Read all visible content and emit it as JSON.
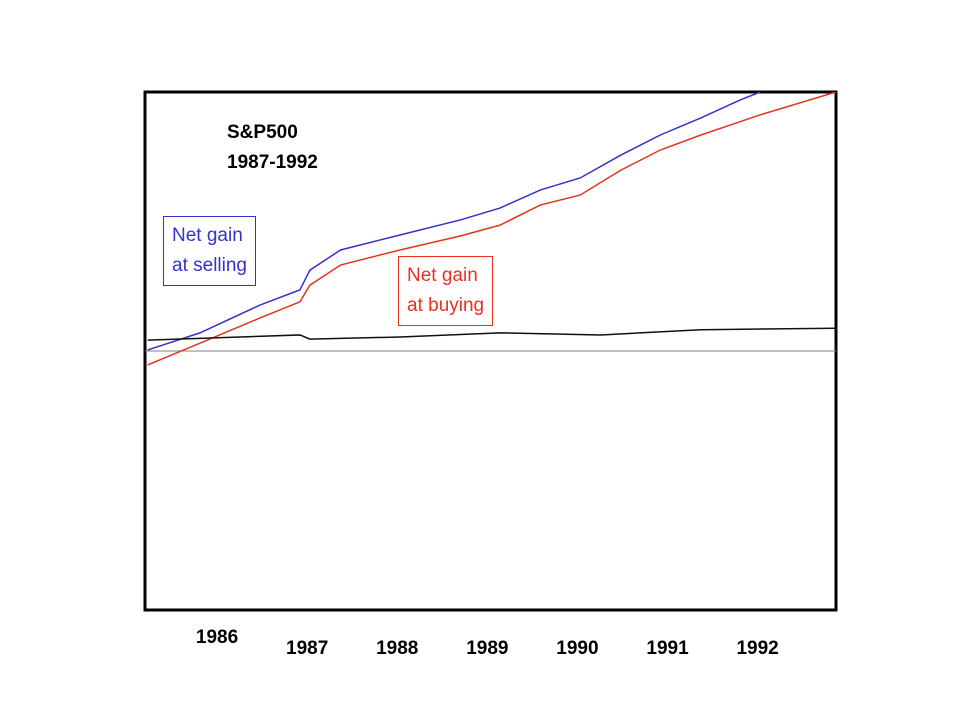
{
  "chart_data": {
    "type": "line",
    "title": "S&P500\n1987-1992",
    "xlim": [
      1985.2,
      1992.87
    ],
    "xticks": [
      1986,
      1987,
      1988,
      1989,
      1990,
      1991,
      1992
    ],
    "ylim": [
      0,
      100
    ],
    "hline": 50,
    "hline_color": "#808080",
    "series": [
      {
        "name": "Net gain\nat selling",
        "color": "#3333cc",
        "x": [
          1985.23,
          1985.81,
          1986.48,
          1986.92,
          1987.03,
          1987.37,
          1988.03,
          1988.7,
          1989.14,
          1989.59,
          1990.03,
          1990.48,
          1990.92,
          1991.37,
          1991.81,
          1992.03
        ],
        "values": [
          50.2,
          53.5,
          58.9,
          61.8,
          65.6,
          69.5,
          72.4,
          75.3,
          77.6,
          81.1,
          83.4,
          87.8,
          91.7,
          95.0,
          98.5,
          100
        ]
      },
      {
        "name": "Net gain\nat buying",
        "color": "#e8321e",
        "x": [
          1985.23,
          1985.81,
          1986.48,
          1986.92,
          1987.03,
          1987.37,
          1988.03,
          1988.7,
          1989.14,
          1989.59,
          1990.03,
          1990.48,
          1990.92,
          1991.37,
          1992.03,
          1992.87
        ],
        "values": [
          47.3,
          51.5,
          56.4,
          59.5,
          62.7,
          66.6,
          69.5,
          72.2,
          74.3,
          78.2,
          80.1,
          84.9,
          88.8,
          91.7,
          95.6,
          100
        ]
      },
      {
        "color": "#111111",
        "x": [
          1985.23,
          1986.92,
          1987.03,
          1988.03,
          1989.14,
          1990.26,
          1991.37,
          1992.87
        ],
        "values": [
          52.1,
          53.1,
          52.3,
          52.7,
          53.5,
          53.1,
          54.1,
          54.4
        ]
      }
    ]
  }
}
